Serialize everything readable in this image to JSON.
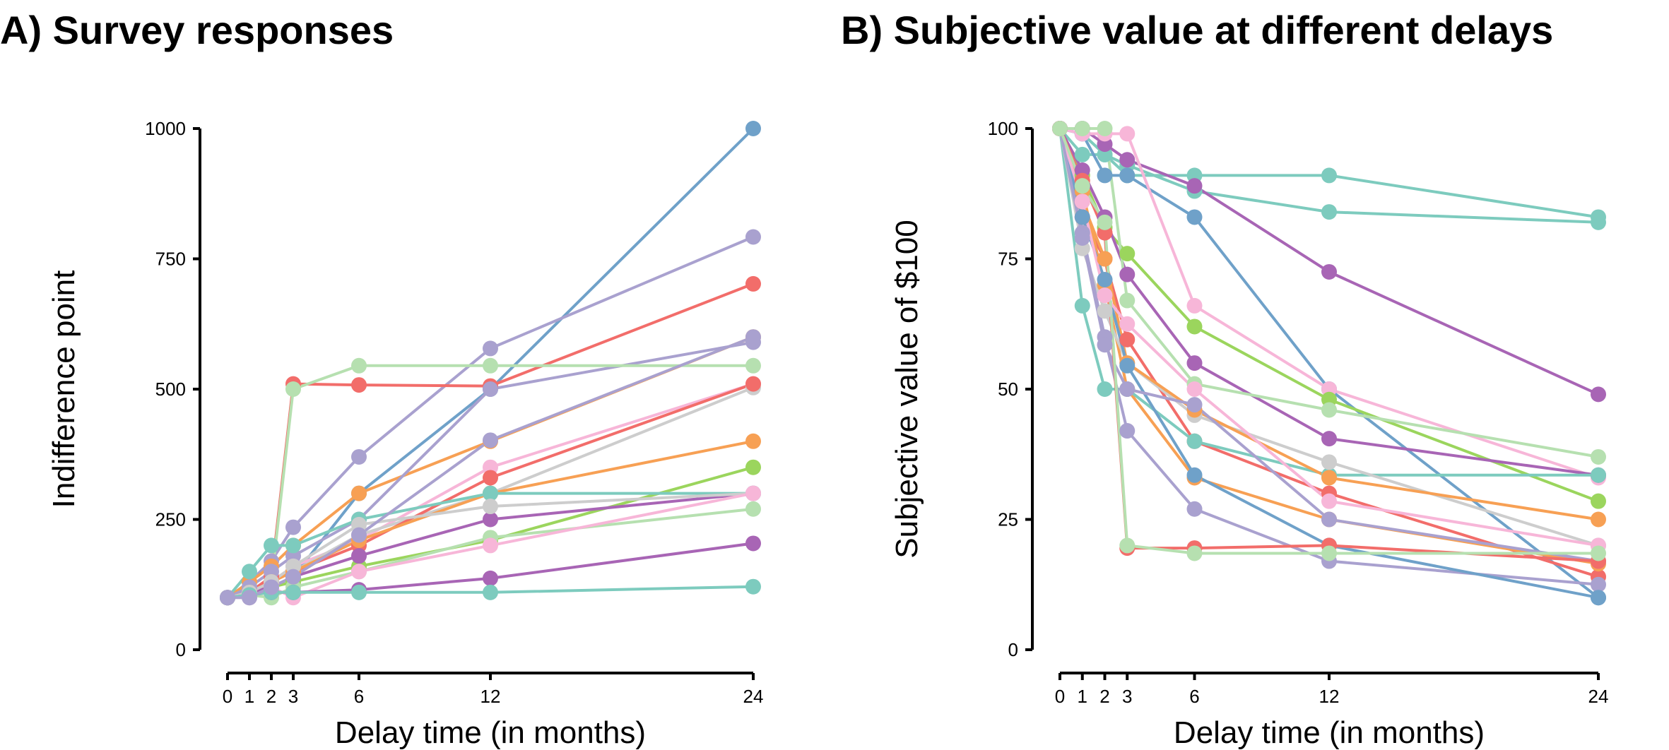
{
  "chart_data": [
    {
      "panel": "A",
      "type": "line",
      "title": "A) Survey responses",
      "xlabel": "Delay time (in months)",
      "ylabel": "Indifference point",
      "x": [
        0,
        1,
        2,
        3,
        6,
        12,
        24
      ],
      "x_ticks": [
        "0",
        "1",
        "2",
        "3",
        "6",
        "12",
        "24"
      ],
      "y_ticks": [
        "0",
        "250",
        "500",
        "750",
        "1000"
      ],
      "xlim": [
        0,
        24
      ],
      "ylim": [
        0,
        1000
      ],
      "grid": false,
      "legend": "none",
      "series": [
        {
          "color": "#6fa1c9",
          "values": [
            100,
            105,
            120,
            140,
            300,
            500,
            1000
          ]
        },
        {
          "color": "#a9a1cf",
          "values": [
            100,
            130,
            170,
            235,
            370,
            578,
            792
          ]
        },
        {
          "color": "#f26d6a",
          "values": [
            100,
            110,
            140,
            510,
            508,
            506,
            702
          ]
        },
        {
          "color": "#f7a054",
          "values": [
            100,
            130,
            160,
            200,
            300,
            400,
            600
          ]
        },
        {
          "color": "#a9a1cf",
          "values": [
            100,
            120,
            150,
            180,
            250,
            500,
            590
          ]
        },
        {
          "color": "#b6e0b0",
          "values": [
            100,
            110,
            130,
            500,
            545,
            545,
            545
          ]
        },
        {
          "color": "#f7b6d8",
          "values": [
            100,
            110,
            130,
            160,
            210,
            350,
            510
          ]
        },
        {
          "color": "#cdcdcd",
          "values": [
            100,
            110,
            130,
            150,
            220,
            300,
            503
          ]
        },
        {
          "color": "#f26d6a",
          "values": [
            100,
            110,
            130,
            150,
            200,
            330,
            510
          ]
        },
        {
          "color": "#f7a054",
          "values": [
            100,
            110,
            130,
            150,
            210,
            300,
            400
          ]
        },
        {
          "color": "#9bd55d",
          "values": [
            100,
            110,
            120,
            130,
            160,
            210,
            350
          ]
        },
        {
          "color": "#7dcbbe",
          "values": [
            100,
            150,
            200,
            200,
            250,
            300,
            300
          ]
        },
        {
          "color": "#a865b5",
          "values": [
            100,
            110,
            120,
            140,
            180,
            250,
            300
          ]
        },
        {
          "color": "#cdcdcd",
          "values": [
            100,
            110,
            130,
            160,
            240,
            275,
            300
          ]
        },
        {
          "color": "#b6e0b0",
          "values": [
            100,
            105,
            100,
            120,
            150,
            215,
            270
          ]
        },
        {
          "color": "#f7b6d8",
          "values": [
            100,
            100,
            120,
            100,
            150,
            200,
            300
          ]
        },
        {
          "color": "#a865b5",
          "values": [
            100,
            105,
            110,
            110,
            115,
            137,
            204
          ]
        },
        {
          "color": "#7dcbbe",
          "values": [
            100,
            105,
            110,
            110,
            110,
            110,
            121
          ]
        },
        {
          "color": "#a9a1cf",
          "values": [
            100,
            100,
            120,
            140,
            220,
            402,
            600
          ]
        }
      ]
    },
    {
      "panel": "B",
      "type": "line",
      "title": "B) Subjective value at different delays",
      "xlabel": "Delay time (in months)",
      "ylabel": "Subjective value of $100",
      "x": [
        0,
        1,
        2,
        3,
        6,
        12,
        24
      ],
      "x_ticks": [
        "0",
        "1",
        "2",
        "3",
        "6",
        "12",
        "24"
      ],
      "y_ticks": [
        "0",
        "25",
        "50",
        "75",
        "100"
      ],
      "xlim": [
        0,
        24
      ],
      "ylim": [
        0,
        100
      ],
      "grid": false,
      "legend": "none",
      "series": [
        {
          "color": "#7dcbbe",
          "values": [
            100,
            95,
            95,
            91,
            91,
            91,
            83
          ]
        },
        {
          "color": "#7dcbbe",
          "values": [
            100,
            99,
            95,
            93,
            88,
            84,
            82
          ]
        },
        {
          "color": "#a865b5",
          "values": [
            100,
            100,
            97,
            94,
            89,
            72.5,
            49
          ]
        },
        {
          "color": "#6fa1c9",
          "values": [
            100,
            99,
            91,
            91,
            83,
            50,
            10
          ]
        },
        {
          "color": "#f7b6d8",
          "values": [
            100,
            99,
            99,
            99,
            66,
            50,
            33
          ]
        },
        {
          "color": "#9bd55d",
          "values": [
            100,
            91,
            81,
            76,
            62,
            48,
            28.5
          ]
        },
        {
          "color": "#a865b5",
          "values": [
            100,
            92,
            83,
            72,
            55,
            40.5,
            33.5
          ]
        },
        {
          "color": "#b6e0b0",
          "values": [
            100,
            100,
            100,
            67,
            51,
            46,
            37
          ]
        },
        {
          "color": "#f26d6a",
          "values": [
            100,
            83,
            75,
            59.5,
            40,
            30,
            14
          ]
        },
        {
          "color": "#f7a054",
          "values": [
            100,
            88,
            70,
            50,
            33,
            25,
            16.5
          ]
        },
        {
          "color": "#7dcbbe",
          "values": [
            100,
            66,
            50,
            50,
            40,
            33.5,
            33.5
          ]
        },
        {
          "color": "#cdcdcd",
          "values": [
            100,
            77,
            65,
            55,
            45,
            36,
            20
          ]
        },
        {
          "color": "#f7a054",
          "values": [
            100,
            86,
            75,
            55,
            46,
            33,
            25
          ]
        },
        {
          "color": "#a9a1cf",
          "values": [
            100,
            80,
            60,
            42,
            27,
            17,
            12.5
          ]
        },
        {
          "color": "#6fa1c9",
          "values": [
            100,
            83,
            71,
            54.5,
            33.5,
            20,
            10
          ]
        },
        {
          "color": "#f7b6d8",
          "values": [
            100,
            86,
            68,
            62.5,
            50,
            28.5,
            20
          ]
        },
        {
          "color": "#a9a1cf",
          "values": [
            100,
            79,
            58.5,
            50,
            47,
            25,
            17
          ]
        },
        {
          "color": "#f26d6a",
          "values": [
            100,
            90,
            80,
            19.5,
            19.5,
            20,
            17
          ]
        },
        {
          "color": "#b6e0b0",
          "values": [
            100,
            89,
            82,
            20,
            18.5,
            18.5,
            18.5
          ]
        }
      ]
    }
  ]
}
